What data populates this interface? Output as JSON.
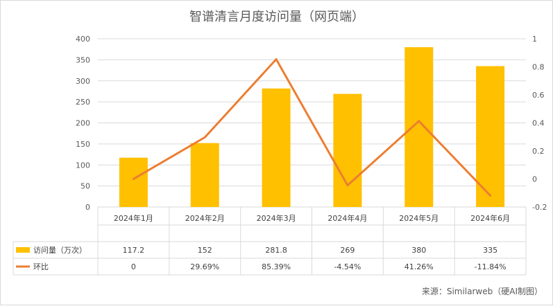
{
  "chart_data": {
    "type": "bar",
    "title": "智谱清言月度访问量（网页端）",
    "categories": [
      "2024年1月",
      "2024年2月",
      "2024年3月",
      "2024年4月",
      "2024年5月",
      "2024年6月"
    ],
    "series": [
      {
        "name": "访问量（万次）",
        "type": "bar",
        "axis": "left",
        "values": [
          117.2,
          152,
          281.8,
          269,
          380,
          335
        ],
        "labels": [
          "117.2",
          "152",
          "281.8",
          "269",
          "380",
          "335"
        ],
        "color": "#FFC000"
      },
      {
        "name": "环比",
        "type": "line",
        "axis": "right",
        "values": [
          0,
          0.2969,
          0.8539,
          -0.0454,
          0.4126,
          -0.1184
        ],
        "labels": [
          "0",
          "29.69%",
          "85.39%",
          "-4.54%",
          "41.26%",
          "-11.84%"
        ],
        "color": "#ED7D31"
      }
    ],
    "y_left": {
      "min": 0,
      "max": 400,
      "ticks": [
        "0",
        "50",
        "100",
        "150",
        "200",
        "250",
        "300",
        "350",
        "400"
      ]
    },
    "y_right": {
      "min": -0.2,
      "max": 1,
      "ticks": [
        "-0.2",
        "0",
        "0.2",
        "0.4",
        "0.6",
        "0.8",
        "1"
      ]
    },
    "grid": true,
    "legend": "data-table",
    "source": "来源：Similarweb（硬AI制图）"
  }
}
